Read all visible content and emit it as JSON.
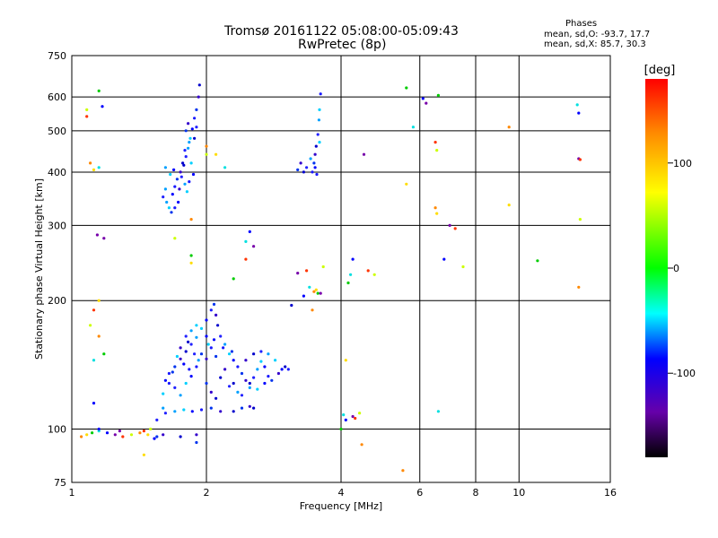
{
  "chart_data": {
    "type": "scatter",
    "title_line1": "Tromsø 20161122 05:08:00-05:09:43",
    "title_line2": "RwPretec (8p)",
    "xlabel": "Frequency [MHz]",
    "ylabel": "Stationary phase Virtual Height [km]",
    "x_scale": "log",
    "y_scale": "log",
    "xlim": [
      1,
      16
    ],
    "ylim": [
      75,
      750
    ],
    "x_ticks": [
      1,
      2,
      4,
      6,
      8,
      10,
      16
    ],
    "x_gridlines": [
      2,
      4,
      6,
      8,
      10
    ],
    "y_ticks": [
      75,
      100,
      200,
      300,
      400,
      500,
      600,
      750
    ],
    "y_gridlines": [
      100,
      200,
      300,
      400,
      500,
      600
    ],
    "grid": true,
    "phase_panel": {
      "title": "Phases",
      "line_o": "mean, sd,O: -93.7, 17.7",
      "line_x": "mean, sd,X:  85.7, 30.3"
    },
    "colorbar": {
      "label": "[deg]",
      "range": [
        -180,
        180
      ],
      "ticks": [
        100,
        0,
        -100
      ],
      "colors_top_to_bottom": [
        "#ff0000",
        "#ff8800",
        "#ffff00",
        "#00ff00",
        "#00ffff",
        "#0000ff",
        "#6600aa",
        "#000000"
      ]
    },
    "series": [
      {
        "values": [
          [
            1.05,
            96
          ],
          [
            1.08,
            97
          ],
          [
            1.11,
            98
          ],
          [
            1.15,
            99
          ],
          [
            1.2,
            98
          ],
          [
            1.25,
            97
          ],
          [
            1.3,
            96
          ],
          [
            1.36,
            97
          ],
          [
            1.42,
            98
          ],
          [
            1.48,
            97
          ],
          [
            1.55,
            96
          ],
          [
            1.6,
            97
          ],
          [
            1.15,
            100
          ],
          [
            1.28,
            99
          ],
          [
            1.45,
            99
          ],
          [
            1.5,
            100
          ],
          [
            1.53,
            95
          ],
          [
            1.45,
            87
          ],
          [
            1.9,
            93
          ],
          [
            1.9,
            97
          ],
          [
            1.75,
            96
          ],
          [
            1.62,
            109
          ],
          [
            1.7,
            110
          ],
          [
            1.78,
            111
          ],
          [
            1.86,
            110
          ],
          [
            1.95,
            111
          ],
          [
            2.05,
            112
          ],
          [
            2.15,
            110
          ],
          [
            2.3,
            110
          ],
          [
            1.55,
            105
          ],
          [
            1.6,
            112
          ],
          [
            1.6,
            121
          ],
          [
            1.62,
            130
          ],
          [
            1.65,
            135
          ],
          [
            1.7,
            140
          ],
          [
            1.75,
            146
          ],
          [
            1.8,
            152
          ],
          [
            1.85,
            158
          ],
          [
            1.9,
            164
          ],
          [
            1.95,
            172
          ],
          [
            2.0,
            180
          ],
          [
            2.05,
            190
          ],
          [
            2.08,
            196
          ],
          [
            2.1,
            185
          ],
          [
            2.12,
            175
          ],
          [
            2.15,
            165
          ],
          [
            2.2,
            158
          ],
          [
            2.25,
            150
          ],
          [
            2.3,
            145
          ],
          [
            2.35,
            140
          ],
          [
            2.4,
            135
          ],
          [
            2.45,
            130
          ],
          [
            2.5,
            128
          ],
          [
            2.55,
            132
          ],
          [
            2.6,
            138
          ],
          [
            2.65,
            144
          ],
          [
            2.7,
            140
          ],
          [
            2.75,
            133
          ],
          [
            2.8,
            130
          ],
          [
            2.9,
            135
          ],
          [
            3.0,
            140
          ],
          [
            1.7,
            125
          ],
          [
            1.75,
            120
          ],
          [
            1.8,
            128
          ],
          [
            1.85,
            133
          ],
          [
            1.9,
            140
          ],
          [
            2.0,
            128
          ],
          [
            2.05,
            122
          ],
          [
            2.1,
            118
          ],
          [
            1.8,
            165
          ],
          [
            1.85,
            170
          ],
          [
            1.9,
            175
          ],
          [
            2.0,
            165
          ],
          [
            2.05,
            155
          ],
          [
            2.1,
            148
          ],
          [
            2.2,
            138
          ],
          [
            2.3,
            128
          ],
          [
            2.4,
            120
          ],
          [
            2.5,
            125
          ],
          [
            1.72,
            148
          ],
          [
            1.78,
            142
          ],
          [
            1.83,
            138
          ],
          [
            1.95,
            150
          ],
          [
            2.0,
            146
          ],
          [
            2.15,
            132
          ],
          [
            2.25,
            126
          ],
          [
            2.35,
            122
          ],
          [
            2.6,
            124
          ],
          [
            2.7,
            128
          ],
          [
            1.65,
            128
          ],
          [
            1.68,
            136
          ],
          [
            1.75,
            155
          ],
          [
            1.82,
            160
          ],
          [
            1.88,
            150
          ],
          [
            1.92,
            145
          ],
          [
            2.02,
            158
          ],
          [
            2.08,
            162
          ],
          [
            2.18,
            155
          ],
          [
            2.28,
            152
          ],
          [
            2.45,
            145
          ],
          [
            2.55,
            150
          ],
          [
            2.65,
            152
          ],
          [
            2.75,
            150
          ],
          [
            2.85,
            145
          ],
          [
            2.95,
            138
          ],
          [
            3.05,
            138
          ],
          [
            2.4,
            112
          ],
          [
            2.5,
            113
          ],
          [
            2.55,
            112
          ],
          [
            1.6,
            350
          ],
          [
            1.63,
            340
          ],
          [
            1.65,
            330
          ],
          [
            1.68,
            355
          ],
          [
            1.7,
            370
          ],
          [
            1.72,
            385
          ],
          [
            1.75,
            400
          ],
          [
            1.78,
            415
          ],
          [
            1.8,
            435
          ],
          [
            1.82,
            455
          ],
          [
            1.84,
            480
          ],
          [
            1.86,
            505
          ],
          [
            1.88,
            535
          ],
          [
            1.9,
            560
          ],
          [
            1.92,
            600
          ],
          [
            1.93,
            640
          ],
          [
            1.76,
            390
          ],
          [
            1.79,
            375
          ],
          [
            1.81,
            360
          ],
          [
            1.73,
            340
          ],
          [
            1.7,
            330
          ],
          [
            1.67,
            322
          ],
          [
            1.74,
            365
          ],
          [
            1.77,
            420
          ],
          [
            1.79,
            450
          ],
          [
            1.83,
            470
          ],
          [
            1.85,
            420
          ],
          [
            1.87,
            395
          ],
          [
            1.83,
            380
          ],
          [
            1.8,
            500
          ],
          [
            1.82,
            520
          ],
          [
            1.88,
            480
          ],
          [
            1.9,
            510
          ],
          [
            1.62,
            410
          ],
          [
            1.66,
            395
          ],
          [
            1.69,
            405
          ],
          [
            3.45,
            400
          ],
          [
            3.48,
            420
          ],
          [
            3.5,
            440
          ],
          [
            3.52,
            460
          ],
          [
            3.55,
            490
          ],
          [
            3.57,
            530
          ],
          [
            3.58,
            560
          ],
          [
            3.5,
            410
          ],
          [
            3.53,
            395
          ],
          [
            3.2,
            405
          ],
          [
            3.25,
            420
          ],
          [
            3.3,
            400
          ],
          [
            3.35,
            410
          ],
          [
            3.42,
            430
          ],
          [
            3.58,
            470
          ],
          [
            3.48,
            210
          ],
          [
            3.52,
            212
          ],
          [
            3.55,
            208
          ],
          [
            3.4,
            215
          ],
          [
            3.3,
            205
          ],
          [
            3.6,
            208
          ],
          [
            1.08,
            540
          ],
          [
            1.08,
            560
          ],
          [
            1.1,
            420
          ],
          [
            1.12,
            405
          ],
          [
            1.15,
            620
          ],
          [
            1.15,
            410
          ],
          [
            1.17,
            570
          ],
          [
            1.14,
            285
          ],
          [
            1.12,
            190
          ],
          [
            1.1,
            175
          ],
          [
            1.15,
            165
          ],
          [
            1.15,
            200
          ],
          [
            1.18,
            150
          ],
          [
            1.12,
            145
          ],
          [
            1.12,
            115
          ],
          [
            1.18,
            280
          ],
          [
            1.62,
            365
          ],
          [
            1.7,
            280
          ],
          [
            1.85,
            310
          ],
          [
            1.85,
            245
          ],
          [
            1.85,
            255
          ],
          [
            2.2,
            410
          ],
          [
            2.5,
            290
          ],
          [
            2.55,
            268
          ],
          [
            2.45,
            250
          ],
          [
            2.0,
            440
          ],
          [
            2.0,
            460
          ],
          [
            2.1,
            440
          ],
          [
            2.3,
            225
          ],
          [
            2.45,
            275
          ],
          [
            3.1,
            195
          ],
          [
            3.2,
            232
          ],
          [
            3.35,
            235
          ],
          [
            3.65,
            240
          ],
          [
            3.45,
            190
          ],
          [
            3.6,
            610
          ],
          [
            4.0,
            100
          ],
          [
            4.05,
            108
          ],
          [
            4.1,
            105
          ],
          [
            4.25,
            107
          ],
          [
            4.3,
            106
          ],
          [
            4.4,
            109
          ],
          [
            4.45,
            92
          ],
          [
            4.1,
            145
          ],
          [
            4.15,
            220
          ],
          [
            4.2,
            230
          ],
          [
            4.25,
            250
          ],
          [
            4.5,
            440
          ],
          [
            4.6,
            235
          ],
          [
            4.75,
            230
          ],
          [
            5.5,
            80
          ],
          [
            5.6,
            375
          ],
          [
            5.6,
            630
          ],
          [
            5.8,
            510
          ],
          [
            6.1,
            595
          ],
          [
            6.2,
            580
          ],
          [
            6.5,
            470
          ],
          [
            6.55,
            450
          ],
          [
            6.5,
            330
          ],
          [
            6.55,
            320
          ],
          [
            6.6,
            605
          ],
          [
            6.6,
            110
          ],
          [
            6.8,
            250
          ],
          [
            7.0,
            300
          ],
          [
            7.2,
            295
          ],
          [
            7.5,
            240
          ],
          [
            9.5,
            510
          ],
          [
            9.5,
            335
          ],
          [
            11.0,
            248
          ],
          [
            13.5,
            575
          ],
          [
            13.6,
            550
          ],
          [
            13.6,
            430
          ],
          [
            13.7,
            428
          ],
          [
            13.7,
            310
          ],
          [
            13.6,
            215
          ]
        ]
      }
    ]
  }
}
